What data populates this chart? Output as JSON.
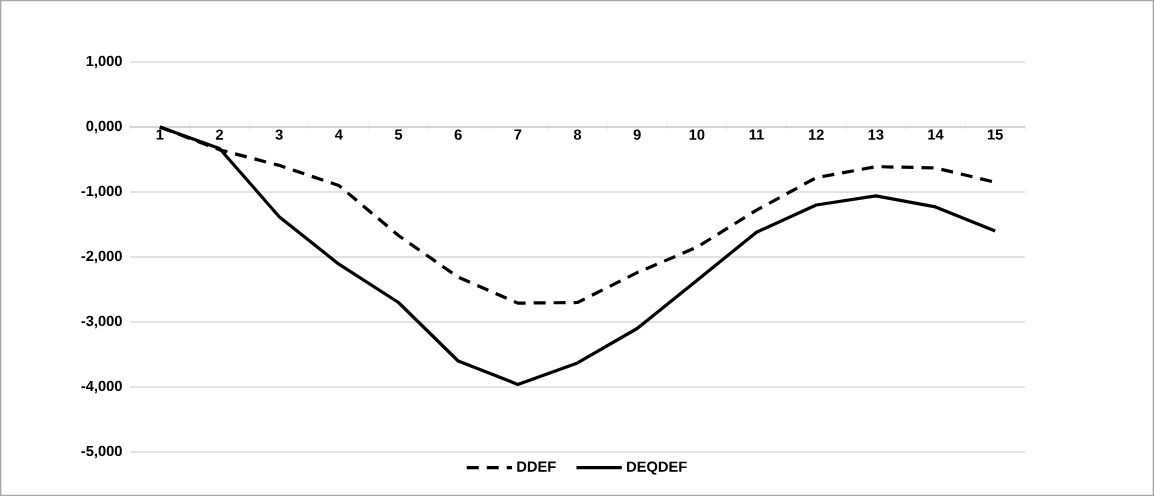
{
  "chart_data": {
    "type": "line",
    "categories": [
      "1",
      "2",
      "3",
      "4",
      "5",
      "6",
      "7",
      "8",
      "9",
      "10",
      "11",
      "12",
      "13",
      "14",
      "15"
    ],
    "series": [
      {
        "name": "DDEF",
        "color": "#000000",
        "line_style": "dashed",
        "values": [
          0,
          -350,
          -590,
          -900,
          -1670,
          -2310,
          -2710,
          -2700,
          -2240,
          -1850,
          -1280,
          -780,
          -610,
          -630,
          -850
        ]
      },
      {
        "name": "DEQDEF",
        "color": "#000000",
        "line_style": "solid",
        "values": [
          0,
          -330,
          -1380,
          -2110,
          -2700,
          -3600,
          -3960,
          -3630,
          -3100,
          -2360,
          -1620,
          -1200,
          -1060,
          -1230,
          -1600
        ]
      }
    ],
    "ylim": [
      -5000,
      1000
    ],
    "yticks": [
      {
        "value": 1000,
        "label": "1,000"
      },
      {
        "value": 0,
        "label": "0,000"
      },
      {
        "value": -1000,
        "label": "-1,000"
      },
      {
        "value": -2000,
        "label": "-2,000"
      },
      {
        "value": -3000,
        "label": "-3,000"
      },
      {
        "value": -4000,
        "label": "-4,000"
      },
      {
        "value": -5000,
        "label": "-5,000"
      }
    ],
    "grid": "y",
    "legend": "bottom",
    "marker": "none"
  }
}
